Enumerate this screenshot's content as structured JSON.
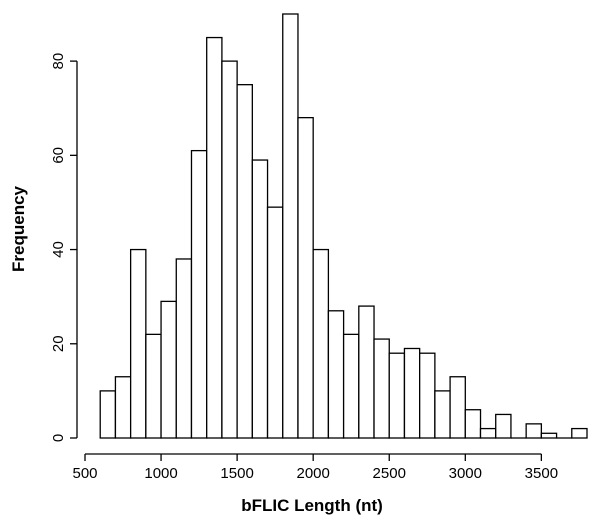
{
  "chart_data": {
    "type": "bar",
    "title": "",
    "xlabel": "bFLIC Length (nt)",
    "ylabel": "Frequency",
    "bin_width": 100,
    "bins": [
      {
        "start": 600,
        "end": 700,
        "count": 10
      },
      {
        "start": 700,
        "end": 800,
        "count": 13
      },
      {
        "start": 800,
        "end": 900,
        "count": 40
      },
      {
        "start": 900,
        "end": 1000,
        "count": 22
      },
      {
        "start": 1000,
        "end": 1100,
        "count": 29
      },
      {
        "start": 1100,
        "end": 1200,
        "count": 38
      },
      {
        "start": 1200,
        "end": 1300,
        "count": 61
      },
      {
        "start": 1300,
        "end": 1400,
        "count": 85
      },
      {
        "start": 1400,
        "end": 1500,
        "count": 80
      },
      {
        "start": 1500,
        "end": 1600,
        "count": 75
      },
      {
        "start": 1600,
        "end": 1700,
        "count": 59
      },
      {
        "start": 1700,
        "end": 1800,
        "count": 49
      },
      {
        "start": 1800,
        "end": 1900,
        "count": 90
      },
      {
        "start": 1900,
        "end": 2000,
        "count": 68
      },
      {
        "start": 2000,
        "end": 2100,
        "count": 40
      },
      {
        "start": 2100,
        "end": 2200,
        "count": 27
      },
      {
        "start": 2200,
        "end": 2300,
        "count": 22
      },
      {
        "start": 2300,
        "end": 2400,
        "count": 28
      },
      {
        "start": 2400,
        "end": 2500,
        "count": 21
      },
      {
        "start": 2500,
        "end": 2600,
        "count": 18
      },
      {
        "start": 2600,
        "end": 2700,
        "count": 19
      },
      {
        "start": 2700,
        "end": 2800,
        "count": 18
      },
      {
        "start": 2800,
        "end": 2900,
        "count": 10
      },
      {
        "start": 2900,
        "end": 3000,
        "count": 13
      },
      {
        "start": 3000,
        "end": 3100,
        "count": 6
      },
      {
        "start": 3100,
        "end": 3200,
        "count": 2
      },
      {
        "start": 3200,
        "end": 3300,
        "count": 5
      },
      {
        "start": 3300,
        "end": 3400,
        "count": 0
      },
      {
        "start": 3400,
        "end": 3500,
        "count": 3
      },
      {
        "start": 3500,
        "end": 3600,
        "count": 1
      },
      {
        "start": 3600,
        "end": 3700,
        "count": 0
      },
      {
        "start": 3700,
        "end": 3800,
        "count": 2
      }
    ],
    "xlim": [
      500,
      3800
    ],
    "ylim": [
      0,
      90
    ],
    "x_ticks": [
      500,
      1000,
      1500,
      2000,
      2500,
      3000,
      3500
    ],
    "x_tick_labels": [
      "500",
      "1000",
      "1500",
      "2000",
      "2500",
      "3000",
      "3500"
    ],
    "y_ticks": [
      0,
      20,
      40,
      60,
      80
    ],
    "y_tick_labels": [
      "0",
      "20",
      "40",
      "60",
      "80"
    ],
    "grid": false,
    "legend": "none",
    "bar_fill": "#ffffff",
    "bar_stroke": "#000000"
  }
}
